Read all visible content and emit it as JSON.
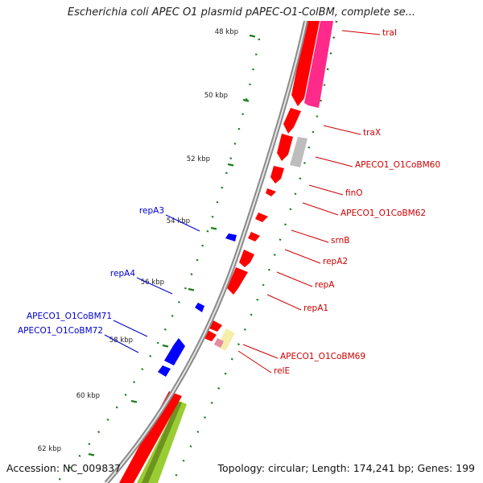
{
  "title": "Escherichia coli APEC O1 plasmid pAPEC-O1-ColBM, complete se...",
  "footer": {
    "accession": "Accession: NC_009837",
    "summary": "Topology: circular; Length: 174,241 bp; Genes: 199"
  },
  "colors": {
    "forward": "#ff0000",
    "reverse_pink": "#ff2a8a",
    "grey": "#bbbbbb",
    "yellow": "#f6eea8",
    "blue": "#0000ff",
    "green": "#99cc33",
    "tick": "#1a7f1a",
    "label_red": "#cc0000",
    "label_blue": "#0000cc"
  },
  "ruler": [
    {
      "label": "48 kbp",
      "kbp": 48
    },
    {
      "label": "50 kbp",
      "kbp": 50
    },
    {
      "label": "52 kbp",
      "kbp": 52
    },
    {
      "label": "54 kbp",
      "kbp": 54
    },
    {
      "label": "56 kbp",
      "kbp": 56
    },
    {
      "label": "58 kbp",
      "kbp": 58
    },
    {
      "label": "60 kbp",
      "kbp": 60
    },
    {
      "label": "62 kbp",
      "kbp": 62
    }
  ],
  "genes_right": [
    {
      "name": "traI",
      "strand": "+",
      "start_kbp": 47.2,
      "end_kbp": 50.1
    },
    {
      "name": "traX",
      "strand": "+",
      "start_kbp": 50.2,
      "end_kbp": 50.9
    },
    {
      "name": "APECO1_O1CoBM60",
      "strand": "+",
      "start_kbp": 51.0,
      "end_kbp": 51.9
    },
    {
      "name": "finO",
      "strand": "+",
      "start_kbp": 52.0,
      "end_kbp": 52.6
    },
    {
      "name": "APECO1_O1CoBM62",
      "strand": "+",
      "start_kbp": 52.9,
      "end_kbp": 53.2
    },
    {
      "name": "srnB",
      "strand": "+",
      "start_kbp": 53.8,
      "end_kbp": 54.1
    },
    {
      "name": "repA2",
      "strand": "+",
      "start_kbp": 54.4,
      "end_kbp": 54.7
    },
    {
      "name": "repA",
      "strand": "+",
      "start_kbp": 54.8,
      "end_kbp": 55.3
    },
    {
      "name": "repA1",
      "strand": "+",
      "start_kbp": 55.4,
      "end_kbp": 56.2
    },
    {
      "name": "APECO1_O1CoBM69",
      "strand": "+",
      "start_kbp": 57.4,
      "end_kbp": 57.8
    },
    {
      "name": "relE",
      "strand": "+",
      "start_kbp": 57.9,
      "end_kbp": 58.2
    }
  ],
  "genes_left": [
    {
      "name": "repA3",
      "strand": "-",
      "start_kbp": 54.5,
      "end_kbp": 54.8
    },
    {
      "name": "repA4",
      "strand": "-",
      "start_kbp": 56.6,
      "end_kbp": 56.9
    },
    {
      "name": "APECO1_O1CoBM71",
      "strand": "-",
      "start_kbp": 58.1,
      "end_kbp": 58.9
    },
    {
      "name": "APECO1_O1CoBM72",
      "strand": "-",
      "start_kbp": 58.9,
      "end_kbp": 59.2
    }
  ]
}
